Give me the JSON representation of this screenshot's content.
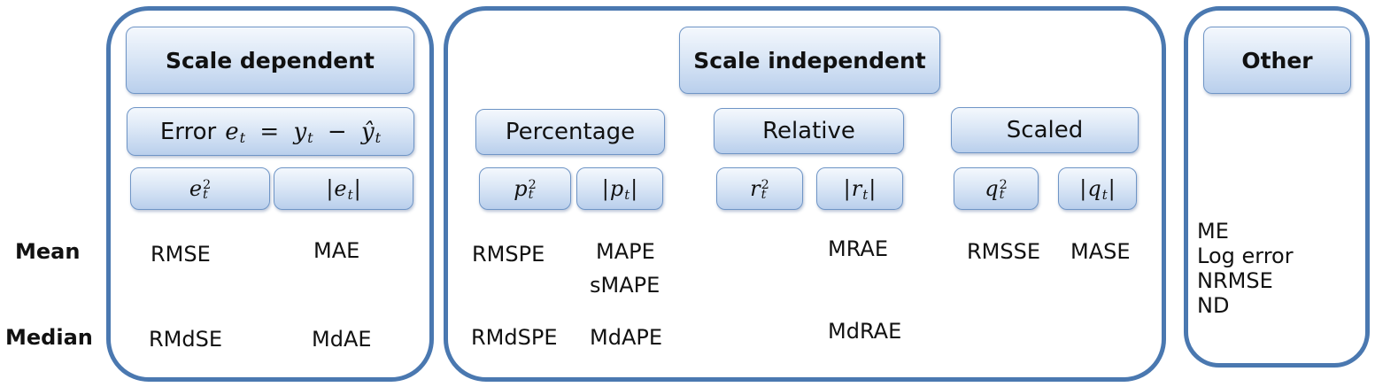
{
  "row_labels": {
    "mean": "Mean",
    "median": "Median"
  },
  "scale_dependent": {
    "title": "Scale dependent",
    "error_prefix": "Error",
    "error_formula": {
      "lhs_var": "e",
      "lhs_sub": "t",
      "eq": "=",
      "y": "y",
      "y_sub": "t",
      "minus": "−",
      "yhat": "ŷ",
      "yhat_sub": "t"
    },
    "leaves": [
      {
        "var": "e",
        "sub": "t",
        "sup": "2",
        "kind": "square"
      },
      {
        "var": "e",
        "sub": "t",
        "kind": "abs"
      }
    ],
    "mean": [
      "RMSE",
      "MAE"
    ],
    "median": [
      "RMdSE",
      "MdAE"
    ]
  },
  "scale_independent": {
    "title": "Scale independent",
    "groups": [
      {
        "name": "Percentage",
        "leaves": [
          {
            "var": "p",
            "sub": "t",
            "sup": "2",
            "kind": "square"
          },
          {
            "var": "p",
            "sub": "t",
            "kind": "abs"
          }
        ],
        "mean_left": "RMSPE",
        "mean_right": [
          "MAPE",
          "sMAPE"
        ],
        "median_left": "RMdSPE",
        "median_right": "MdAPE"
      },
      {
        "name": "Relative",
        "leaves": [
          {
            "var": "r",
            "sub": "t",
            "sup": "2",
            "kind": "square"
          },
          {
            "var": "r",
            "sub": "t",
            "kind": "abs"
          }
        ],
        "mean_right": "MRAE",
        "median_right": "MdRAE"
      },
      {
        "name": "Scaled",
        "leaves": [
          {
            "var": "q",
            "sub": "t",
            "sup": "2",
            "kind": "square"
          },
          {
            "var": "q",
            "sub": "t",
            "kind": "abs"
          }
        ],
        "mean_left": "RMSSE",
        "mean_right": "MASE"
      }
    ]
  },
  "other": {
    "title": "Other",
    "items": [
      "ME",
      "Log error",
      "NRMSE",
      "ND"
    ]
  }
}
